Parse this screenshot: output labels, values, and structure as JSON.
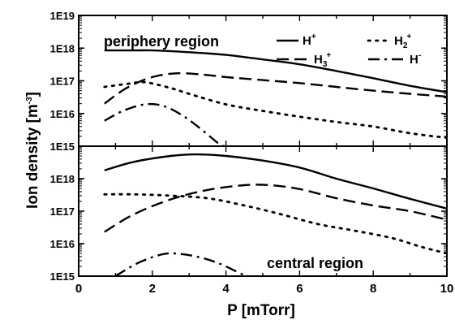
{
  "chart_data": {
    "type": "line",
    "xlabel": "P  [mTorr]",
    "ylabel": "Ion density  [m",
    "ylabel_exponent": "-3",
    "ylabel_close": "]",
    "x_ticks": [
      "0",
      "2",
      "4",
      "6",
      "8",
      "10"
    ],
    "xlim": [
      0,
      10
    ],
    "y_scale": "log",
    "legend_placement": "top-right of upper panel",
    "panels": [
      {
        "label": "periphery region",
        "ylim": [
          1000000000000000.0,
          1e+19
        ],
        "y_ticks": [
          {
            "value": 1000000000000000.0,
            "label": "1E15"
          },
          {
            "value": 1e+16,
            "label": "1E16"
          },
          {
            "value": 1e+17,
            "label": "1E17"
          },
          {
            "value": 1e+18,
            "label": "1E18"
          },
          {
            "value": 1e+19,
            "label": "1E19"
          }
        ],
        "series": [
          {
            "key": "H+",
            "style": "solid",
            "points": [
              [
                0.7,
                8.5e+17
              ],
              [
                1.5,
                8.5e+17
              ],
              [
                2,
                8.5e+17
              ],
              [
                3,
                7.5e+17
              ],
              [
                4,
                6.2e+17
              ],
              [
                5,
                4.5e+17
              ],
              [
                6,
                3.2e+17
              ],
              [
                7,
                2e+17
              ],
              [
                8,
                1.2e+17
              ],
              [
                9,
                7e+16
              ],
              [
                10,
                4.5e+16
              ]
            ]
          },
          {
            "key": "H2+",
            "style": "dot",
            "points": [
              [
                0.7,
                6.5e+16
              ],
              [
                1.3,
                8e+16
              ],
              [
                1.8,
                9e+16
              ],
              [
                2.5,
                6e+16
              ],
              [
                3,
                4e+16
              ],
              [
                4,
                1.9e+16
              ],
              [
                5,
                1.2e+16
              ],
              [
                6,
                8000000000000000.0
              ],
              [
                7,
                5500000000000000.0
              ],
              [
                8,
                4000000000000000.0
              ],
              [
                9,
                2500000000000000.0
              ],
              [
                10,
                1800000000000000.0
              ]
            ]
          },
          {
            "key": "H3+",
            "style": "dash",
            "points": [
              [
                0.7,
                2e+16
              ],
              [
                1.3,
                6e+16
              ],
              [
                2,
                1.3e+17
              ],
              [
                2.7,
                1.7e+17
              ],
              [
                3.5,
                1.5e+17
              ],
              [
                4,
                1.3e+17
              ],
              [
                5,
                1.05e+17
              ],
              [
                6,
                8.5e+16
              ],
              [
                7,
                6.5e+16
              ],
              [
                8,
                5e+16
              ],
              [
                9,
                4e+16
              ],
              [
                10,
                3.3e+16
              ]
            ]
          },
          {
            "key": "H-",
            "style": "dashdot",
            "points": [
              [
                0.7,
                6000000000000000.0
              ],
              [
                1.2,
                1.2e+16
              ],
              [
                1.8,
                1.9e+16
              ],
              [
                2.3,
                1.7e+16
              ],
              [
                2.8,
                9000000000000000.0
              ],
              [
                3.3,
                3500000000000000.0
              ],
              [
                3.8,
                1200000000000000.0
              ],
              [
                3.95,
                1000000000000000.0
              ]
            ]
          }
        ]
      },
      {
        "label": "central region",
        "ylim": [
          1000000000000000.0,
          1e+19
        ],
        "y_ticks": [
          {
            "value": 1000000000000000.0,
            "label": "1E15"
          },
          {
            "value": 1e+16,
            "label": "1E16"
          },
          {
            "value": 1e+17,
            "label": "1E17"
          },
          {
            "value": 1e+18,
            "label": "1E18"
          }
        ],
        "series": [
          {
            "key": "H+",
            "style": "solid",
            "points": [
              [
                0.7,
                1.8e+18
              ],
              [
                1.5,
                3.3e+18
              ],
              [
                2.5,
                5e+18
              ],
              [
                3.2,
                5.6e+18
              ],
              [
                4,
                5e+18
              ],
              [
                5,
                3.6e+18
              ],
              [
                6,
                2.2e+18
              ],
              [
                7,
                1e+18
              ],
              [
                8,
                5e+17
              ],
              [
                9,
                2.4e+17
              ],
              [
                10,
                1.2e+17
              ]
            ]
          },
          {
            "key": "H2+",
            "style": "dot",
            "points": [
              [
                0.7,
                3.3e+17
              ],
              [
                1.5,
                3.3e+17
              ],
              [
                2.5,
                3e+17
              ],
              [
                3.5,
                2.5e+17
              ],
              [
                4.5,
                1.5e+17
              ],
              [
                5.5,
                8e+16
              ],
              [
                6.5,
                4e+16
              ],
              [
                7.5,
                2.5e+16
              ],
              [
                8.5,
                1.5e+16
              ],
              [
                9.3,
                8000000000000000.0
              ],
              [
                10,
                5000000000000000.0
              ]
            ]
          },
          {
            "key": "H3+",
            "style": "dash",
            "points": [
              [
                0.7,
                2.3e+16
              ],
              [
                1.5,
                8e+16
              ],
              [
                2.5,
                2.3e+17
              ],
              [
                3.5,
                4.5e+17
              ],
              [
                4.5,
                6.3e+17
              ],
              [
                5.2,
                6.3e+17
              ],
              [
                6,
                4.8e+17
              ],
              [
                7,
                2.5e+17
              ],
              [
                8,
                1.5e+17
              ],
              [
                9,
                1e+17
              ],
              [
                10,
                5.5e+16
              ]
            ]
          },
          {
            "key": "H-",
            "style": "dashdot",
            "points": [
              [
                1.0,
                1000000000000000.0
              ],
              [
                1.6,
                2500000000000000.0
              ],
              [
                2.2,
                4500000000000000.0
              ],
              [
                2.6,
                5000000000000000.0
              ],
              [
                3.2,
                4000000000000000.0
              ],
              [
                3.8,
                2500000000000000.0
              ],
              [
                4.4,
                1200000000000000.0
              ],
              [
                4.6,
                1000000000000000.0
              ]
            ]
          }
        ]
      }
    ],
    "legend": [
      {
        "key": "H+",
        "style": "solid",
        "base": "H",
        "sup": "+",
        "sub": ""
      },
      {
        "key": "H2+",
        "style": "dot",
        "base": "H",
        "sup": "+",
        "sub": "2"
      },
      {
        "key": "H3+",
        "style": "dash",
        "base": "H",
        "sup": "+",
        "sub": "3"
      },
      {
        "key": "H-",
        "style": "dashdot",
        "base": "H",
        "sup": "-",
        "sub": ""
      }
    ]
  }
}
